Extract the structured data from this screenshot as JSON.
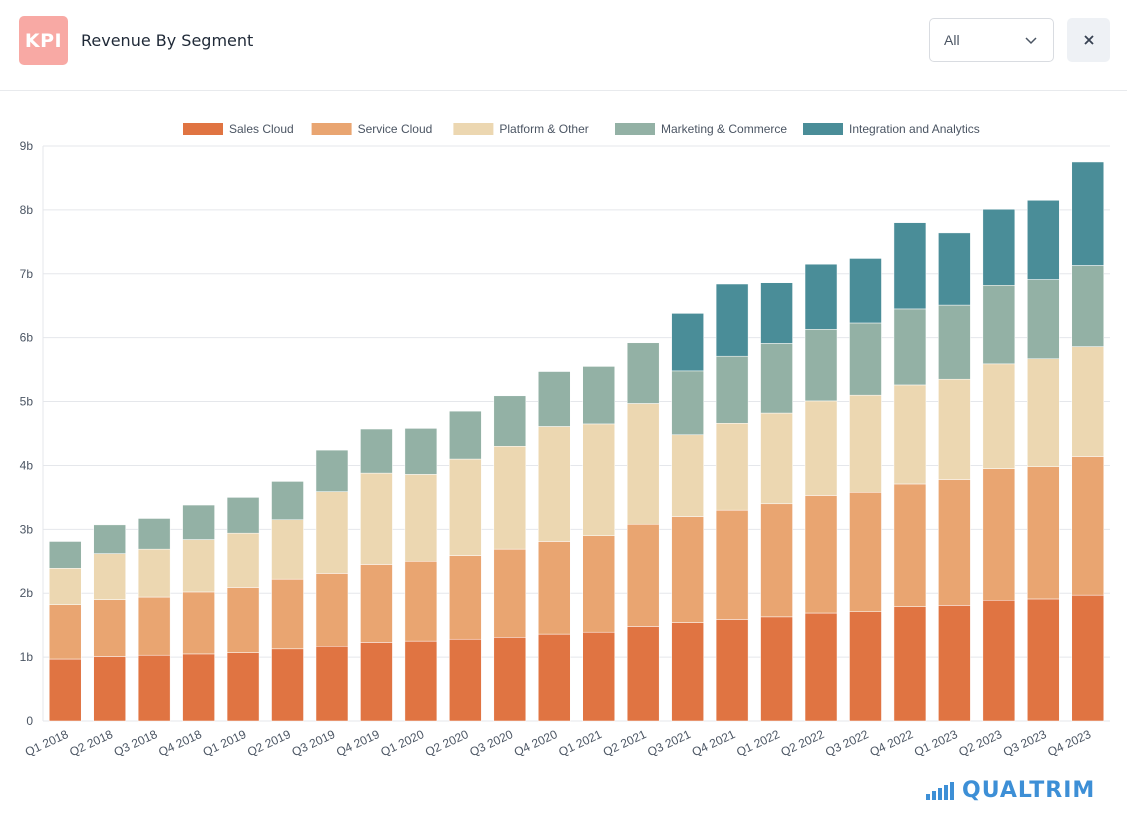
{
  "header": {
    "logo_text": "KPI",
    "title": "Revenue By Segment",
    "filter": {
      "selected": "All"
    },
    "close_label": "×"
  },
  "brand": {
    "name": "QUALTRIM"
  },
  "colors": {
    "logo_bg": "#f8a9a4",
    "brand": "#3d8fd6"
  },
  "chart_data": {
    "type": "bar",
    "stacked": true,
    "title": "",
    "xlabel": "",
    "ylabel": "",
    "ylim": [
      0,
      9
    ],
    "yticks": [
      {
        "v": 0,
        "label": "0"
      },
      {
        "v": 1,
        "label": "1b"
      },
      {
        "v": 2,
        "label": "2b"
      },
      {
        "v": 3,
        "label": "3b"
      },
      {
        "v": 4,
        "label": "4b"
      },
      {
        "v": 5,
        "label": "5b"
      },
      {
        "v": 6,
        "label": "6b"
      },
      {
        "v": 7,
        "label": "7b"
      },
      {
        "v": 8,
        "label": "8b"
      },
      {
        "v": 9,
        "label": "9b"
      }
    ],
    "grid": true,
    "legend_position": "top-center",
    "categories": [
      "Q1 2018",
      "Q2 2018",
      "Q3 2018",
      "Q4 2018",
      "Q1 2019",
      "Q2 2019",
      "Q3 2019",
      "Q4 2019",
      "Q1 2020",
      "Q2 2020",
      "Q3 2020",
      "Q4 2020",
      "Q1 2021",
      "Q2 2021",
      "Q3 2021",
      "Q4 2021",
      "Q1 2022",
      "Q2 2022",
      "Q3 2022",
      "Q4 2022",
      "Q1 2023",
      "Q2 2023",
      "Q3 2023",
      "Q4 2023"
    ],
    "series": [
      {
        "name": "Sales Cloud",
        "color": "#e07442",
        "values": [
          0.97,
          1.01,
          1.03,
          1.05,
          1.07,
          1.13,
          1.17,
          1.23,
          1.25,
          1.28,
          1.31,
          1.36,
          1.39,
          1.48,
          1.54,
          1.59,
          1.63,
          1.69,
          1.71,
          1.79,
          1.81,
          1.89,
          1.91,
          1.97
        ]
      },
      {
        "name": "Service Cloud",
        "color": "#e9a571",
        "values": [
          0.85,
          0.89,
          0.91,
          0.97,
          1.02,
          1.09,
          1.14,
          1.22,
          1.25,
          1.31,
          1.38,
          1.45,
          1.51,
          1.6,
          1.66,
          1.71,
          1.77,
          1.84,
          1.87,
          1.92,
          1.97,
          2.06,
          2.07,
          2.17
        ]
      },
      {
        "name": "Platform & Other",
        "color": "#ecd7b1",
        "values": [
          0.57,
          0.72,
          0.75,
          0.82,
          0.85,
          0.93,
          1.28,
          1.43,
          1.36,
          1.51,
          1.61,
          1.8,
          1.75,
          1.89,
          1.28,
          1.36,
          1.42,
          1.48,
          1.52,
          1.55,
          1.57,
          1.64,
          1.69,
          1.72
        ]
      },
      {
        "name": "Marketing & Commerce",
        "color": "#93b1a5",
        "values": [
          0.42,
          0.45,
          0.48,
          0.54,
          0.56,
          0.6,
          0.65,
          0.69,
          0.72,
          0.75,
          0.79,
          0.86,
          0.9,
          0.95,
          1.0,
          1.05,
          1.09,
          1.12,
          1.13,
          1.19,
          1.16,
          1.23,
          1.24,
          1.27
        ]
      },
      {
        "name": "Integration and Analytics",
        "color": "#4a8d98",
        "values": [
          0,
          0,
          0,
          0,
          0,
          0,
          0,
          0,
          0,
          0,
          0,
          0,
          0,
          0,
          0.9,
          1.13,
          0.95,
          1.02,
          1.01,
          1.35,
          1.13,
          1.19,
          1.24,
          1.62
        ]
      }
    ]
  }
}
